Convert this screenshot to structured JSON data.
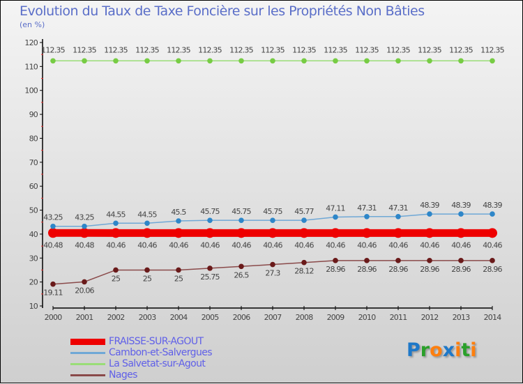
{
  "title": "Evolution du Taux de Taxe Foncière sur les Propriétés Non Bâties",
  "unit": "(en %)",
  "logo": {
    "parts": [
      "Pro",
      "x",
      "iti"
    ],
    "colors": [
      "#1e78c8",
      "#2aa02a",
      "#ff7f0e",
      "#1e78c8",
      "#ff7f0e",
      "#2aa02a",
      "#ff7f0e"
    ],
    "text": "Proxiti"
  },
  "chart_data": {
    "type": "line",
    "title": "Evolution du Taux de Taxe Foncière sur les Propriétés Non Bâties",
    "ylabel": "(en %)",
    "ylim": [
      10,
      120
    ],
    "yticks": [
      10,
      20,
      30,
      40,
      50,
      60,
      70,
      80,
      90,
      100,
      110,
      120
    ],
    "x": [
      "2000",
      "2001",
      "2002",
      "2003",
      "2004",
      "2005",
      "2006",
      "2007",
      "2008",
      "2009",
      "2010",
      "2011",
      "2012",
      "2013",
      "2014"
    ],
    "legend_position": "bottom-left",
    "series": [
      {
        "name": "FRAISSE-SUR-AGOUT",
        "color": "#ee0000",
        "labels": [
          "40.48",
          "40.48",
          "40.46",
          "40.46",
          "40.46",
          "40.46",
          "40.46",
          "40.46",
          "40.46",
          "40.46",
          "40.46",
          "40.46",
          "40.46",
          "40.46",
          "40.46"
        ],
        "values": [
          40.48,
          40.48,
          40.46,
          40.46,
          40.46,
          40.46,
          40.46,
          40.46,
          40.46,
          40.46,
          40.46,
          40.46,
          40.46,
          40.46,
          40.46
        ]
      },
      {
        "name": "Cambon-et-Salvergues",
        "color": "#6fa8d6",
        "marker": "#2e86c8",
        "labels": [
          "43.25",
          "43.25",
          "44.55",
          "44.55",
          "45.5",
          "45.75",
          "45.75",
          "45.75",
          "45.77",
          "47.11",
          "47.31",
          "47.31",
          "48.39",
          "48.39",
          "48.39"
        ],
        "values": [
          43.25,
          43.25,
          44.55,
          44.55,
          45.5,
          45.75,
          45.75,
          45.75,
          45.77,
          47.11,
          47.31,
          47.31,
          48.39,
          48.39,
          48.39
        ]
      },
      {
        "name": "La Salvetat-sur-Agout",
        "color": "#99dd77",
        "marker": "#77cc44",
        "labels": [
          "112.35",
          "112.35",
          "112.35",
          "112.35",
          "112.35",
          "112.35",
          "112.35",
          "112.35",
          "112.35",
          "112.35",
          "112.35",
          "112.35",
          "112.35",
          "112.35",
          "112.35"
        ],
        "values": [
          112.35,
          112.35,
          112.35,
          112.35,
          112.35,
          112.35,
          112.35,
          112.35,
          112.35,
          112.35,
          112.35,
          112.35,
          112.35,
          112.35,
          112.35
        ]
      },
      {
        "name": "Nages",
        "color": "#8a4a4a",
        "marker": "#6a1a1a",
        "labels": [
          "19.11",
          "20.06",
          "25",
          "25",
          "25",
          "25.75",
          "26.5",
          "27.3",
          "28.12",
          "28.96",
          "28.96",
          "28.96",
          "28.96",
          "28.96",
          "28.96"
        ],
        "values": [
          19.11,
          20.06,
          25,
          25,
          25,
          25.75,
          26.5,
          27.3,
          28.12,
          28.96,
          28.96,
          28.96,
          28.96,
          28.96,
          28.96
        ]
      }
    ]
  }
}
